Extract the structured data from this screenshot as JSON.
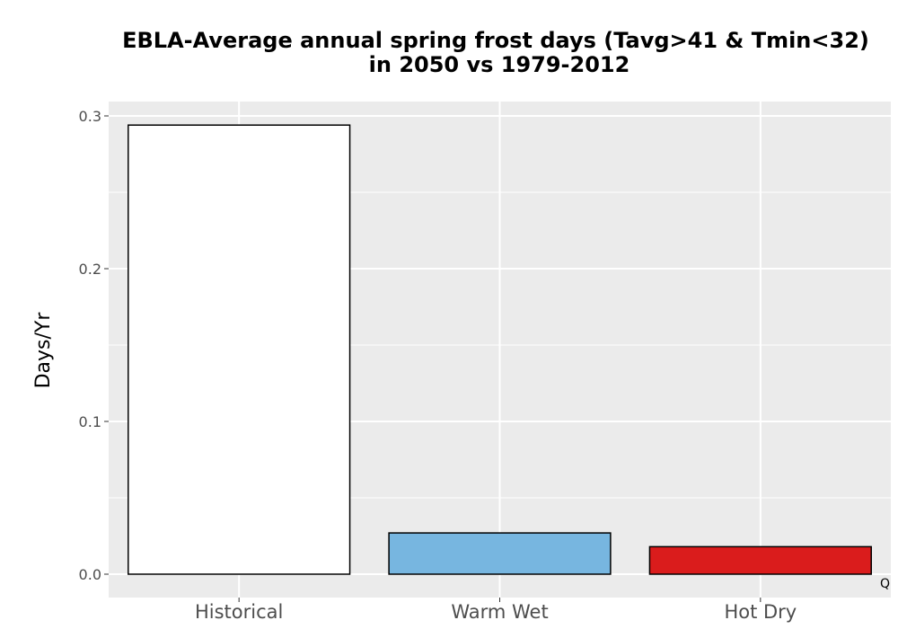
{
  "chart_data": {
    "type": "bar",
    "title": "EBLA-Average annual spring frost days (Tavg>41 & Tmin<32)",
    "subtitle": "in 2050 vs 1979-2012",
    "ylabel": "Days/Yr",
    "xlabel": "",
    "categories": [
      "Historical",
      "Warm Wet",
      "Hot Dry"
    ],
    "values": [
      0.294,
      0.027,
      0.018
    ],
    "colors": [
      "#ffffff",
      "#77b6e0",
      "#da1c1c"
    ],
    "ylim": [
      -0.015,
      0.309
    ],
    "yticks": [
      0.0,
      0.1,
      0.2,
      0.3
    ],
    "ytick_labels": [
      "0.0",
      "0.1",
      "0.2",
      "0.3"
    ],
    "grid": true,
    "panel_background": "#ebebeb",
    "bar_outline": "#000000",
    "corner_label": "Q"
  }
}
